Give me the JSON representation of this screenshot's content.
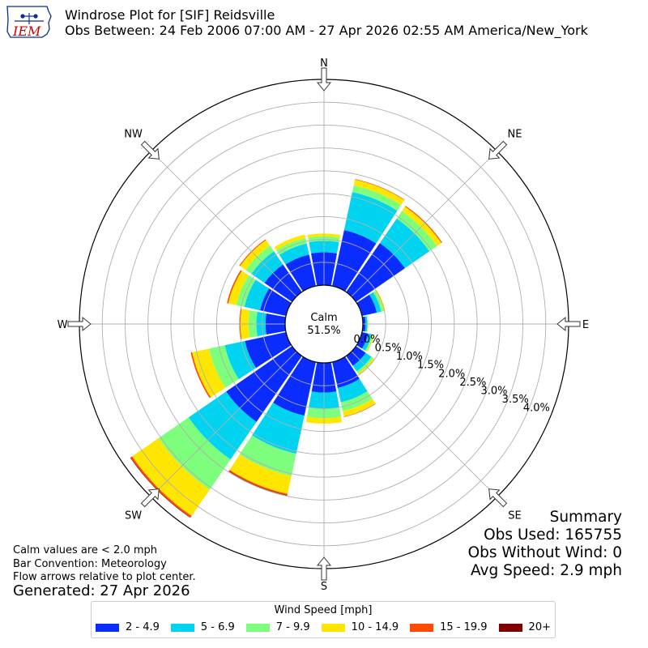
{
  "header": {
    "logo_text": "IEM",
    "title_line1": "Windrose Plot for [SIF] Reidsville",
    "title_line2": "Obs Between: 24 Feb 2006 07:00 AM - 27 Apr 2026 02:55 AM America/New_York"
  },
  "notes": {
    "line1": "Calm values are < 2.0 mph",
    "line2": "Bar Convention: Meteorology",
    "line3": "Flow arrows relative to plot center.",
    "generated": "Generated: 27 Apr 2026"
  },
  "summary": {
    "heading": "Summary",
    "obs_used": "Obs Used: 165755",
    "obs_without_wind": "Obs Without Wind: 0",
    "avg_speed": "Avg Speed: 2.9 mph"
  },
  "legend": {
    "title": "Wind Speed [mph]"
  },
  "colors": {
    "logo_text": "#cc0000",
    "logo_line": "#0a2f9a",
    "arrow_fill": "#ffffff",
    "arrow_stroke": "#333333",
    "grid": "#b0b0b0"
  },
  "chart_data": {
    "type": "windrose",
    "calm": {
      "label": "Calm",
      "value": "51.5%"
    },
    "directions": [
      "N",
      "NNE",
      "NE",
      "ENE",
      "E",
      "ESE",
      "SE",
      "SSE",
      "S",
      "SSW",
      "SW",
      "WSW",
      "W",
      "WNW",
      "NW",
      "NNW"
    ],
    "compass_labels": [
      "N",
      "NE",
      "E",
      "SE",
      "S",
      "SW",
      "W",
      "NW"
    ],
    "ring_labels": [
      "0.0%",
      "0.5%",
      "1.0%",
      "1.5%",
      "2.0%",
      "2.5%",
      "3.0%",
      "3.5%",
      "4.0%"
    ],
    "rmax": 4.5,
    "series": [
      {
        "name": "2 - 4.9",
        "color": "#0a2cff",
        "values": [
          0.72,
          1.25,
          1.3,
          0.33,
          0.06,
          0.14,
          0.26,
          0.58,
          0.65,
          1.2,
          1.75,
          0.92,
          0.43,
          0.58,
          0.73,
          0.7
        ]
      },
      {
        "name": "5 - 6.9",
        "color": "#00d4f0",
        "values": [
          0.25,
          0.85,
          0.65,
          0.1,
          0.04,
          0.08,
          0.15,
          0.32,
          0.36,
          0.85,
          1.0,
          0.45,
          0.2,
          0.35,
          0.35,
          0.25
        ]
      },
      {
        "name": "7 - 9.9",
        "color": "#7dff7d",
        "values": [
          0.1,
          0.15,
          0.2,
          0.05,
          0.01,
          0.03,
          0.05,
          0.2,
          0.2,
          0.5,
          0.8,
          0.35,
          0.17,
          0.18,
          0.15,
          0.12
        ]
      },
      {
        "name": "10 - 14.9",
        "color": "#ffe600",
        "values": [
          0.06,
          0.13,
          0.12,
          0.04,
          0.01,
          0.02,
          0.04,
          0.12,
          0.12,
          0.4,
          0.7,
          0.38,
          0.18,
          0.18,
          0.15,
          0.08
        ]
      },
      {
        "name": "15 - 19.9",
        "color": "#ff4a00",
        "values": [
          0.0,
          0.01,
          0.02,
          0.0,
          0.0,
          0.0,
          0.0,
          0.01,
          0.0,
          0.03,
          0.04,
          0.03,
          0.02,
          0.03,
          0.02,
          0.0
        ]
      },
      {
        "name": "20+",
        "color": "#800000",
        "values": [
          0.0,
          0.0,
          0.0,
          0.0,
          0.0,
          0.0,
          0.0,
          0.0,
          0.0,
          0.01,
          0.01,
          0.0,
          0.0,
          0.0,
          0.0,
          0.0
        ]
      }
    ]
  }
}
